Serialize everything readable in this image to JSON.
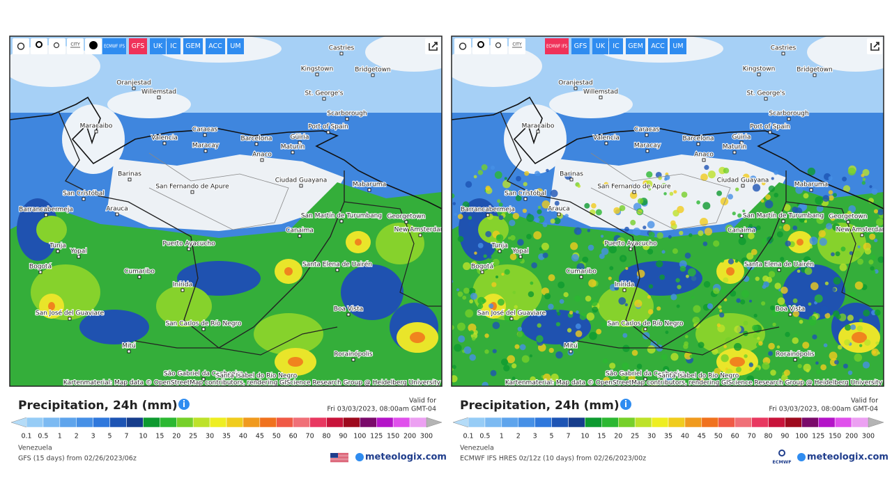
{
  "panels": [
    {
      "toolbar": {
        "city": "CITY",
        "has_dot": true,
        "models": [
          {
            "label": "ECMWF IFS",
            "active": false
          },
          {
            "label": "GFS",
            "active": true
          },
          {
            "label": "UK",
            "active": false
          },
          {
            "label": "IC",
            "active": false
          },
          {
            "label": "GEM",
            "active": false
          },
          {
            "label": "ACC",
            "active": false
          },
          {
            "label": "UM",
            "active": false
          }
        ]
      },
      "detailed": false,
      "cities": [
        "Castries",
        "Kingstown",
        "Bridgetown",
        "Oranjestad",
        "Willemstad",
        "St. George's",
        "Scarborough",
        "Maracaibo",
        "Port of Spain",
        "Caracas",
        "Valencia",
        "Barcelona",
        "Güiria",
        "Maracay",
        "Maturín",
        "Anaco",
        "Barinas",
        "Ciudad Guayana",
        "Mabaruma",
        "San Fernando de Apure",
        "San Cristóbal",
        "Arauca",
        "Barrancabermeja",
        "San Martín de Turumbang",
        "Georgetown",
        "Canaima",
        "New Amsterdam",
        "Puerto Ayacucho",
        "Tunja",
        "Yopal",
        "Bogotá",
        "Santa Elena de Uairén",
        "Cumaribo",
        "Inírida",
        "Boa Vista",
        "San José del Guaviare",
        "San Carlos de Río Negro",
        "Mitú",
        "Rorainópolis",
        "São Gabriel da Cachoeira",
        "Santa Isabel do Rio Negro"
      ],
      "attribution": "Kartenmaterial: Map data © OpenStreetMap contributors, rendering GIScience Research Group @ Heidelberg University",
      "title": "Precipitation, 24h (mm)",
      "valid_label": "Valid for",
      "valid_time": "Fri 03/03/2023, 08:00am GMT-04",
      "legend": [
        0.1,
        0.5,
        1,
        2,
        3,
        5,
        7,
        10,
        15,
        20,
        25,
        30,
        35,
        40,
        45,
        50,
        60,
        70,
        80,
        90,
        100,
        125,
        150,
        200,
        300
      ],
      "region": "Venezuela",
      "source": "GFS (15 days) from 02/26/2023/06z",
      "logo": "flag",
      "brand": "meteologix.com"
    },
    {
      "toolbar": {
        "city": "CITY",
        "has_dot": false,
        "models": [
          {
            "label": "ECMWF IFS",
            "active": true
          },
          {
            "label": "GFS",
            "active": false
          },
          {
            "label": "UK",
            "active": false
          },
          {
            "label": "IC",
            "active": false
          },
          {
            "label": "GEM",
            "active": false
          },
          {
            "label": "ACC",
            "active": false
          },
          {
            "label": "UM",
            "active": false
          }
        ]
      },
      "detailed": true,
      "cities": [
        "Castries",
        "Kingstown",
        "Bridgetown",
        "Oranjestad",
        "Willemstad",
        "St. George's",
        "Scarborough",
        "Maracaibo",
        "Port of Spain",
        "Caracas",
        "Valencia",
        "Barcelona",
        "Güiria",
        "Maracay",
        "Maturín",
        "Anaco",
        "Barinas",
        "Ciudad Guayana",
        "Mabaruma",
        "San Fernando de Apure",
        "San Cristóbal",
        "Arauca",
        "Barrancabermeja",
        "San Martín de Turumbang",
        "Georgetown",
        "Canaima",
        "New Amsterdam",
        "Puerto Ayacucho",
        "Tunja",
        "Yopal",
        "Bogotá",
        "Santa Elena de Uairén",
        "Cumaribo",
        "Inírida",
        "Boa Vista",
        "San José del Guaviare",
        "San Carlos de Río Negro",
        "Mitú",
        "Rorainópolis",
        "São Gabriel da Cachoeira",
        "Santa Isabel do Rio Negro"
      ],
      "attribution": "Kartenmaterial: Map data © OpenStreetMap contributors, rendering GIScience Research Group @ Heidelberg University",
      "title": "Precipitation, 24h (mm)",
      "valid_label": "Valid for",
      "valid_time": "Fri 03/03/2023, 08:00am GMT-04",
      "legend": [
        0.1,
        0.5,
        1,
        2,
        3,
        5,
        7,
        10,
        15,
        20,
        25,
        30,
        35,
        40,
        45,
        50,
        60,
        70,
        80,
        90,
        100,
        125,
        150,
        200,
        300
      ],
      "region": "Venezuela",
      "source": "ECMWF IFS HRES 0z/12z (10 days) from 02/26/2023/00z",
      "logo": "ECMWF",
      "brand": "meteologix.com"
    }
  ],
  "legend_colors": [
    "#b4dcf8",
    "#96ccf6",
    "#7cbaf2",
    "#5ea4ec",
    "#4690e6",
    "#2f78dc",
    "#1d54b4",
    "#173d8c",
    "#0e9a30",
    "#2cb832",
    "#76d02a",
    "#bde22a",
    "#eeee22",
    "#f0cc1e",
    "#f09a1e",
    "#f0721e",
    "#f05a46",
    "#f07078",
    "#e83860",
    "#c8143a",
    "#9e0a1e",
    "#7a0a6a",
    "#b414c8",
    "#e050ec",
    "#eca0f2",
    "#f4d4f8",
    "#d4d4d4",
    "#b4b4b4"
  ]
}
